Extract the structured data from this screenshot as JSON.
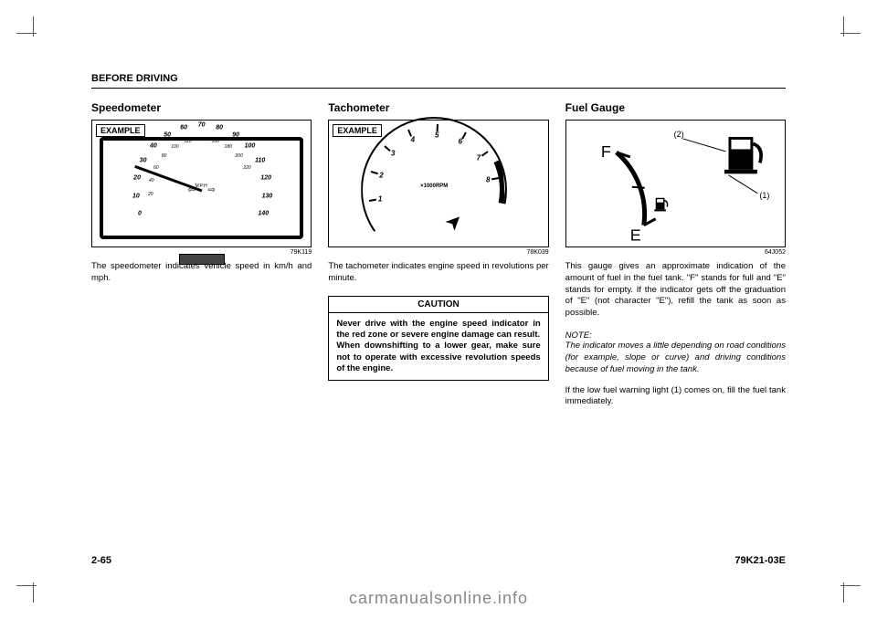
{
  "header": "BEFORE DRIVING",
  "page_number": "2-65",
  "doc_code": "79K21-03E",
  "watermark": "carmanualsonline.info",
  "col1": {
    "title": "Speedometer",
    "example": "EXAMPLE",
    "fig_ref": "79K119",
    "body": "The speedometer indicates vehicle speed in km/h and mph.",
    "gauge": {
      "type": "analog-dial",
      "outer_numbers": [
        "0",
        "10",
        "20",
        "30",
        "40",
        "50",
        "60",
        "70",
        "80",
        "90",
        "100",
        "110",
        "120",
        "130",
        "140"
      ],
      "inner_numbers": [
        "20",
        "40",
        "60",
        "80",
        "100",
        "120",
        "140",
        "160",
        "180",
        "200",
        "220"
      ],
      "unit_top": "MPH",
      "unit_bottom": "km/h",
      "needle_angle_deg": 200,
      "colors": {
        "dial": "#ffffff",
        "marks": "#000000",
        "needle": "#000000"
      }
    }
  },
  "col2": {
    "title": "Tachometer",
    "example": "EXAMPLE",
    "fig_ref": "78K039",
    "body": "The tachometer indicates engine speed in revolutions per minute.",
    "caution_title": "CAUTION",
    "caution_body": "Never drive with the engine speed indicator in the red zone or severe engine damage can result.\nWhen downshifting to a lower gear, make sure not to operate with excessive revolution speeds of the engine.",
    "gauge": {
      "type": "analog-dial",
      "numbers": [
        "1",
        "2",
        "3",
        "4",
        "5",
        "6",
        "7",
        "8"
      ],
      "unit": "×1000RPM",
      "red_zone_start": 6.5,
      "red_zone_end": 8,
      "colors": {
        "dial": "#ffffff",
        "marks": "#000000",
        "red_zone": "#000000"
      }
    }
  },
  "col3": {
    "title": "Fuel Gauge",
    "fig_ref": "64J052",
    "body1": "This gauge gives an approximate indication of the amount of fuel in the fuel tank. \"F\" stands for full and \"E\" stands for empty. If the indicator gets off the graduation of \"E\" (not character \"E\"), refill the tank as soon as possible.",
    "note_label": "NOTE:",
    "note_body": "The indicator moves a little depending on road conditions (for example, slope or curve) and driving conditions because of fuel moving in the tank.",
    "body2": "If the low fuel warning light (1) comes on, fill the fuel tank immediately.",
    "gauge": {
      "type": "fuel-arc",
      "labels": {
        "full": "F",
        "empty": "E"
      },
      "callouts": [
        "(1)",
        "(2)"
      ],
      "colors": {
        "arc": "#000000",
        "bg": "#ffffff"
      }
    }
  }
}
